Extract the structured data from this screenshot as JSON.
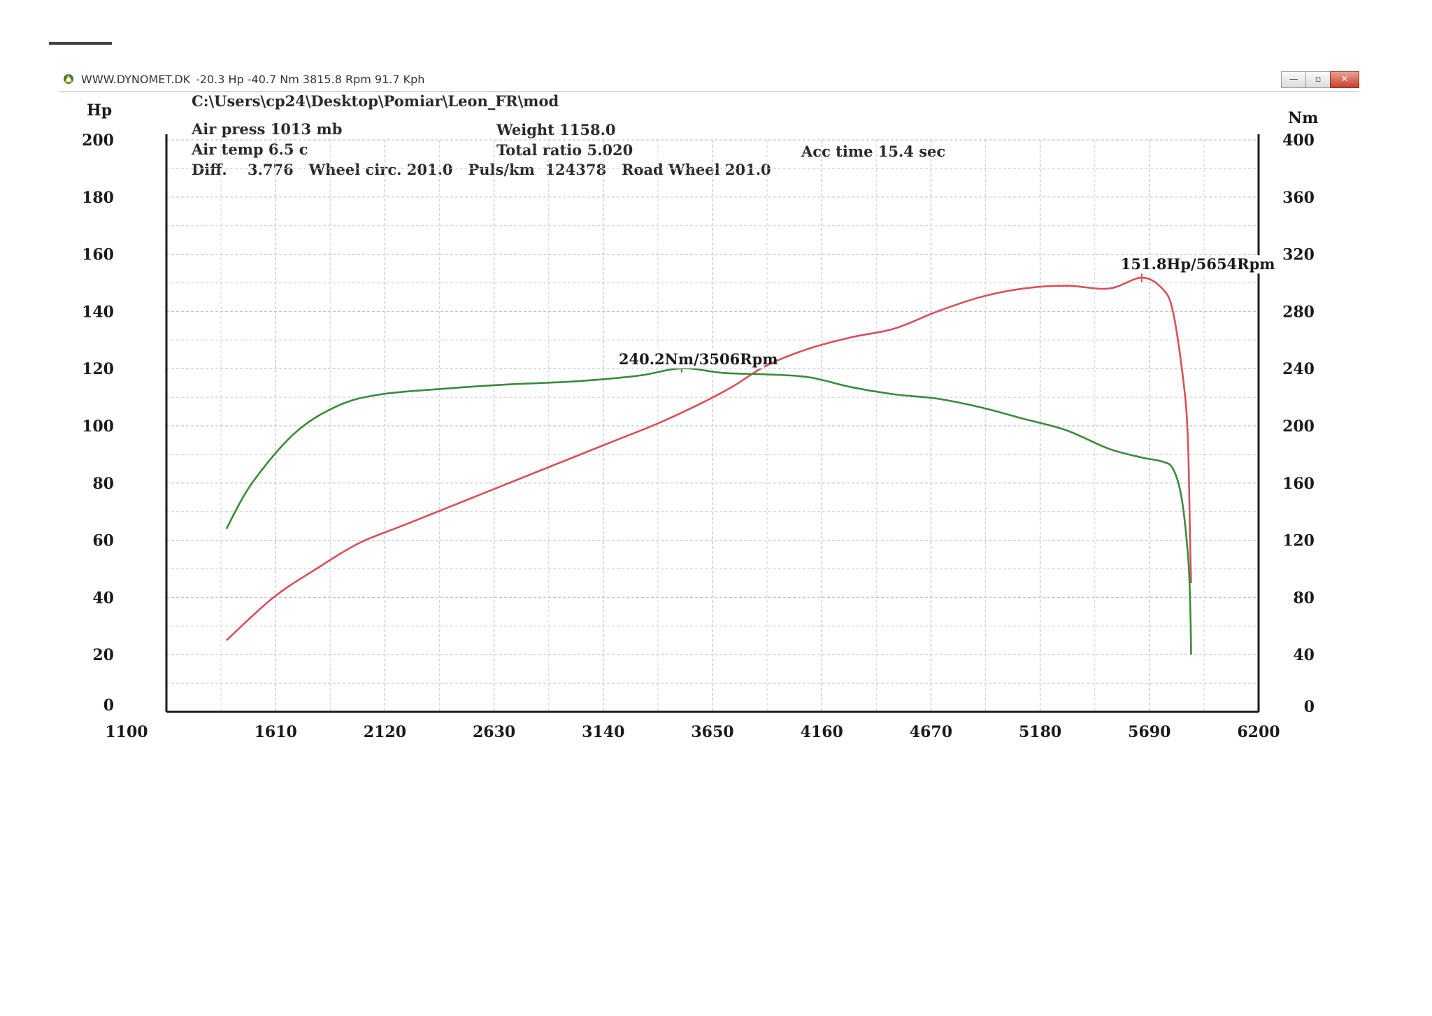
{
  "window": {
    "title": "WWW.DYNOMET.DK",
    "readout": "-20.3 Hp -40.7 Nm 3815.8 Rpm 91.7 Kph",
    "buttons": {
      "minimize": "—",
      "maximize": "▫",
      "close": "✕"
    }
  },
  "header": {
    "file_path": "C:\\Users\\cp24\\Desktop\\Pomiar\\Leon_FR\\mod",
    "air_press": "Air press  1013 mb",
    "air_temp": "Air temp   6.5 c",
    "diff": "Diff.    3.776   Wheel circ. 201.0   Puls/km  124378   Road Wheel 201.0",
    "weight": "Weight   1158.0",
    "total_ratio": "Total ratio 5.020",
    "acc_time": "Acc time   15.4 sec"
  },
  "chart_data": {
    "type": "line",
    "x_ticks": [
      1100,
      1610,
      2120,
      2630,
      3140,
      3650,
      4160,
      4670,
      5180,
      5690,
      6200
    ],
    "xlim": [
      1100,
      6200
    ],
    "y_left": {
      "label": "Hp",
      "ticks": [
        0,
        20,
        40,
        60,
        80,
        100,
        120,
        140,
        160,
        180,
        200
      ],
      "ylim": [
        0,
        200
      ]
    },
    "y_right": {
      "label": "Nm",
      "ticks": [
        0,
        40,
        80,
        120,
        160,
        200,
        240,
        280,
        320,
        360,
        400
      ],
      "ylim": [
        0,
        400
      ]
    },
    "grid": true,
    "series": [
      {
        "axis": "left",
        "color": "#d9505a",
        "points": [
          [
            1380,
            25
          ],
          [
            1600,
            40
          ],
          [
            1800,
            50
          ],
          [
            2000,
            59
          ],
          [
            2200,
            65
          ],
          [
            2400,
            71
          ],
          [
            2600,
            77
          ],
          [
            2800,
            83
          ],
          [
            3000,
            89
          ],
          [
            3200,
            95
          ],
          [
            3400,
            101
          ],
          [
            3600,
            108
          ],
          [
            3750,
            114
          ],
          [
            3900,
            121
          ],
          [
            4100,
            127
          ],
          [
            4300,
            131
          ],
          [
            4500,
            134
          ],
          [
            4700,
            140
          ],
          [
            4900,
            145
          ],
          [
            5100,
            148
          ],
          [
            5300,
            149
          ],
          [
            5500,
            148
          ],
          [
            5654,
            151.8
          ],
          [
            5750,
            148
          ],
          [
            5800,
            140
          ],
          [
            5850,
            115
          ],
          [
            5870,
            95
          ],
          [
            5880,
            60
          ],
          [
            5885,
            45
          ]
        ]
      },
      {
        "axis": "right",
        "color": "#3a8a3a",
        "points": [
          [
            1380,
            128
          ],
          [
            1500,
            160
          ],
          [
            1700,
            195
          ],
          [
            1900,
            214
          ],
          [
            2100,
            222
          ],
          [
            2400,
            226
          ],
          [
            2700,
            229
          ],
          [
            3000,
            231
          ],
          [
            3300,
            235
          ],
          [
            3506,
            240.2
          ],
          [
            3700,
            237
          ],
          [
            3900,
            236
          ],
          [
            4100,
            234
          ],
          [
            4300,
            227
          ],
          [
            4500,
            222
          ],
          [
            4700,
            219
          ],
          [
            4900,
            213
          ],
          [
            5100,
            205
          ],
          [
            5300,
            197
          ],
          [
            5500,
            184
          ],
          [
            5650,
            178
          ],
          [
            5750,
            175
          ],
          [
            5800,
            170
          ],
          [
            5840,
            150
          ],
          [
            5870,
            110
          ],
          [
            5880,
            78
          ],
          [
            5885,
            40
          ]
        ]
      }
    ],
    "annotations": [
      {
        "text": "151.8Hp/5654Rpm",
        "color": "#d9505a",
        "x": 5654,
        "y": 151.8,
        "axis": "left"
      },
      {
        "text": "240.2Nm/3506Rpm",
        "color": "#3a8a3a",
        "x": 3506,
        "y": 240.2,
        "axis": "right"
      }
    ]
  }
}
